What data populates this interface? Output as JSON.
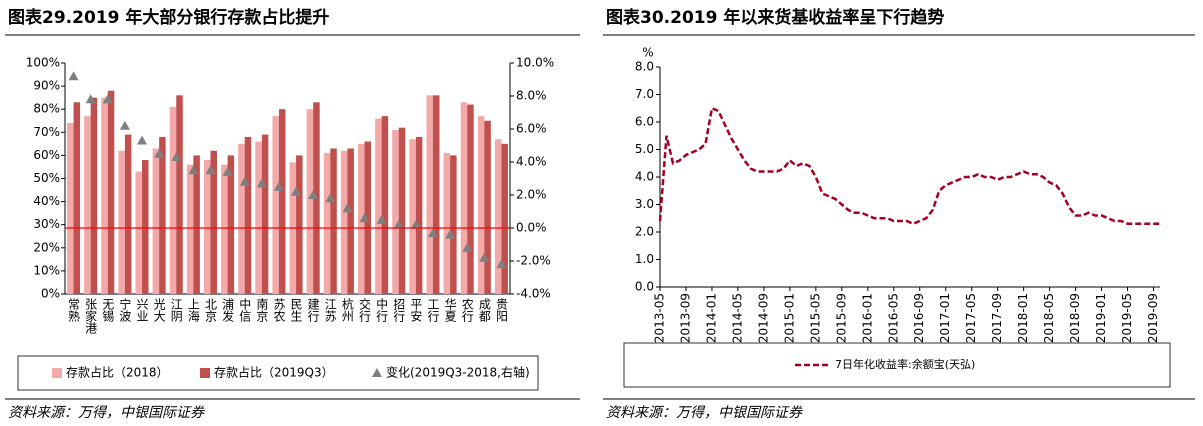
{
  "chart_data": [
    {
      "type": "bar",
      "title": "图表29.2019 年大部分银行存款占比提升",
      "source": "资料来源：万得，中银国际证券",
      "categories": [
        "常熟",
        "张家港",
        "无锡",
        "宁波",
        "兴业",
        "光大",
        "江阴",
        "上海",
        "北京",
        "浦发",
        "中信",
        "南京",
        "苏农",
        "民生",
        "建行",
        "江苏",
        "杭州",
        "交行",
        "中行",
        "招行",
        "平安",
        "工行",
        "华夏",
        "农行",
        "成都",
        "贵阳"
      ],
      "series": [
        {
          "name": "存款占比（2018）",
          "color": "#f2a9a8",
          "values": [
            74,
            77,
            85,
            62,
            53,
            63,
            81,
            56,
            58,
            56,
            65,
            66,
            77,
            57,
            80,
            61,
            62,
            65,
            76,
            71,
            67,
            86,
            61,
            83,
            77,
            67
          ]
        },
        {
          "name": "存款占比（2019Q3）",
          "color": "#c0504d",
          "values": [
            83,
            85,
            88,
            69,
            58,
            68,
            86,
            60,
            62,
            60,
            68,
            69,
            80,
            60,
            83,
            63,
            63,
            66,
            77,
            72,
            68,
            86,
            60,
            82,
            75,
            65
          ]
        },
        {
          "name": "变化(2019Q3-2018,右轴)",
          "color": "#7f7f7f",
          "type": "scatter",
          "axis": "y2",
          "values": [
            9.2,
            7.8,
            7.8,
            6.2,
            5.3,
            4.5,
            4.3,
            3.5,
            3.5,
            3.4,
            2.8,
            2.7,
            2.5,
            2.2,
            2.0,
            1.8,
            1.2,
            0.6,
            0.5,
            0.2,
            0.2,
            -0.3,
            -0.4,
            -1.2,
            -1.8,
            -2.2
          ]
        }
      ],
      "ylim": [
        0,
        100
      ],
      "yticks": [
        {
          "value": 0,
          "label": "0%"
        },
        {
          "value": 10,
          "label": "10%"
        },
        {
          "value": 20,
          "label": "20%"
        },
        {
          "value": 30,
          "label": "30%"
        },
        {
          "value": 40,
          "label": "40%"
        },
        {
          "value": 50,
          "label": "50%"
        },
        {
          "value": 60,
          "label": "60%"
        },
        {
          "value": 70,
          "label": "70%"
        },
        {
          "value": 80,
          "label": "80%"
        },
        {
          "value": 90,
          "label": "90%"
        },
        {
          "value": 100,
          "label": "100%"
        }
      ],
      "y2lim": [
        -4,
        10
      ],
      "y2ticks": [
        {
          "value": -4,
          "label": "-4.0%"
        },
        {
          "value": -2,
          "label": "-2.0%"
        },
        {
          "value": 0,
          "label": "0.0%"
        },
        {
          "value": 2,
          "label": "2.0%"
        },
        {
          "value": 4,
          "label": "4.0%"
        },
        {
          "value": 6,
          "label": "6.0%"
        },
        {
          "value": 8,
          "label": "8.0%"
        },
        {
          "value": 10,
          "label": "10.0%"
        }
      ],
      "zero_line_color": "#ff0000"
    },
    {
      "type": "line",
      "title": "图表30.2019 年以来货基收益率呈下行趋势",
      "source": "资料来源：万得，中银国际证券",
      "y_unit": "%",
      "categories": [
        "2013-05",
        null,
        null,
        null,
        "2013-09",
        null,
        null,
        null,
        "2014-01",
        null,
        null,
        null,
        "2014-05",
        null,
        null,
        null,
        "2014-09",
        null,
        null,
        null,
        "2015-01",
        null,
        null,
        null,
        "2015-05",
        null,
        null,
        null,
        "2015-09",
        null,
        null,
        null,
        "2016-01",
        null,
        null,
        null,
        "2016-05",
        null,
        null,
        null,
        "2016-09",
        null,
        null,
        null,
        "2017-01",
        null,
        null,
        null,
        "2017-05",
        null,
        null,
        null,
        "2017-09",
        null,
        null,
        null,
        "2018-01",
        null,
        null,
        null,
        "2018-05",
        null,
        null,
        null,
        "2018-09",
        null,
        null,
        null,
        "2019-01",
        null,
        null,
        null,
        "2019-05",
        null,
        null,
        null,
        "2019-09",
        null
      ],
      "series": [
        {
          "name": "7日年化收益率:余额宝(天弘)",
          "color": "#a50021",
          "values": [
            2.4,
            5.5,
            4.5,
            4.6,
            4.8,
            4.9,
            5.0,
            5.2,
            6.5,
            6.4,
            5.9,
            5.4,
            5.0,
            4.6,
            4.3,
            4.2,
            4.2,
            4.2,
            4.2,
            4.3,
            4.6,
            4.4,
            4.5,
            4.4,
            4.0,
            3.4,
            3.3,
            3.2,
            3.0,
            2.8,
            2.7,
            2.7,
            2.6,
            2.5,
            2.5,
            2.5,
            2.4,
            2.4,
            2.4,
            2.3,
            2.4,
            2.5,
            2.8,
            3.5,
            3.7,
            3.8,
            3.9,
            4.0,
            4.0,
            4.1,
            4.0,
            4.0,
            3.9,
            4.0,
            4.0,
            4.1,
            4.2,
            4.1,
            4.1,
            4.0,
            3.8,
            3.7,
            3.4,
            2.9,
            2.6,
            2.6,
            2.7,
            2.6,
            2.6,
            2.5,
            2.4,
            2.4,
            2.3,
            2.3,
            2.3,
            2.3,
            2.3,
            2.3
          ]
        }
      ],
      "ylim": [
        0,
        8
      ],
      "yticks": [
        {
          "value": 0,
          "label": "0.0"
        },
        {
          "value": 1,
          "label": "1.0"
        },
        {
          "value": 2,
          "label": "2.0"
        },
        {
          "value": 3,
          "label": "3.0"
        },
        {
          "value": 4,
          "label": "4.0"
        },
        {
          "value": 5,
          "label": "5.0"
        },
        {
          "value": 6,
          "label": "6.0"
        },
        {
          "value": 7,
          "label": "7.0"
        },
        {
          "value": 8,
          "label": "8.0"
        }
      ]
    }
  ]
}
